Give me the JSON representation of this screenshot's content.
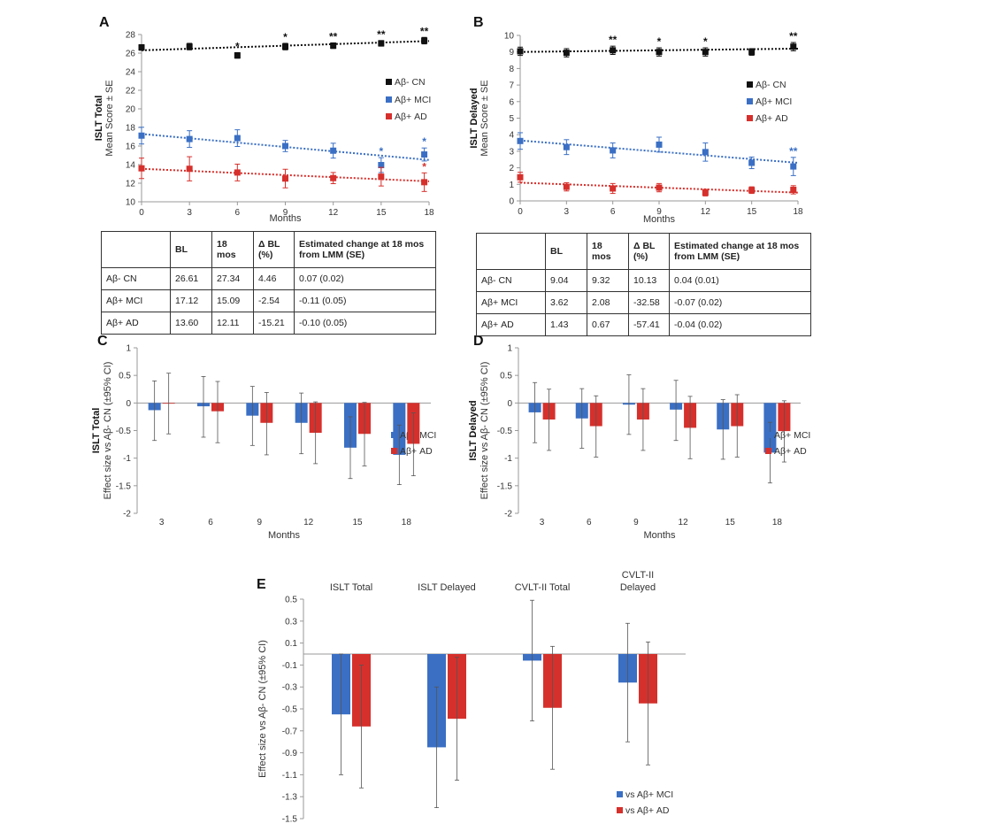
{
  "chart_data": [
    {
      "panel": "A",
      "type": "line",
      "ylabel_title": "ISLT Total",
      "ylabel": "Mean Score ± SE",
      "xlabel": "Months",
      "x": [
        0,
        3,
        6,
        9,
        12,
        15,
        18
      ],
      "xticks": [
        "0",
        "3",
        "6",
        "9",
        "12",
        "15",
        "18"
      ],
      "ylim": [
        10,
        28
      ],
      "yticks": [
        "10",
        "12",
        "14",
        "16",
        "18",
        "20",
        "22",
        "24",
        "26",
        "28"
      ],
      "legend_position": "right",
      "series": [
        {
          "name": "Aβ- CN",
          "color": "#111111",
          "x": [
            0,
            3,
            6,
            9,
            12,
            15,
            17.7
          ],
          "values": [
            26.61,
            26.7,
            25.75,
            26.7,
            26.8,
            27.05,
            27.34
          ],
          "err": [
            0.3,
            0.35,
            0.3,
            0.35,
            0.3,
            0.3,
            0.35
          ],
          "sig": [
            "",
            "",
            "*",
            "*",
            "**",
            "**",
            "**"
          ],
          "trend": [
            26.3,
            27.3
          ]
        },
        {
          "name": "Aβ+ MCI",
          "color": "#3a6fc4",
          "x": [
            0,
            3,
            6,
            9,
            12,
            15,
            17.7
          ],
          "values": [
            17.12,
            16.75,
            16.85,
            16.0,
            15.5,
            13.95,
            15.09
          ],
          "err": [
            0.9,
            0.9,
            0.9,
            0.6,
            0.8,
            0.8,
            0.7
          ],
          "sig": [
            "",
            "",
            "",
            "",
            "",
            "*",
            "*"
          ],
          "trend": [
            17.3,
            14.5
          ]
        },
        {
          "name": "Aβ+ AD",
          "color": "#d6302c",
          "x": [
            0,
            3,
            6,
            9,
            12,
            15,
            17.7
          ],
          "values": [
            13.6,
            13.55,
            13.15,
            12.5,
            12.55,
            12.7,
            12.11
          ],
          "err": [
            1.1,
            1.3,
            0.9,
            1.0,
            0.6,
            1.0,
            1.0
          ],
          "sig": [
            "",
            "",
            "",
            "",
            "",
            "",
            "*"
          ],
          "trend": [
            13.55,
            12.2
          ]
        }
      ],
      "table": {
        "headers": [
          "",
          "BL",
          "18 mos",
          "Δ BL (%)",
          "Estimated change at 18 mos from LMM (SE)"
        ],
        "rows": [
          [
            "Aβ- CN",
            "26.61",
            "27.34",
            "4.46",
            "0.07 (0.02)"
          ],
          [
            "Aβ+ MCI",
            "17.12",
            "15.09",
            "-2.54",
            "-0.11 (0.05)"
          ],
          [
            "Aβ+ AD",
            "13.60",
            "12.11",
            "-15.21",
            "-0.10 (0.05)"
          ]
        ]
      }
    },
    {
      "panel": "B",
      "type": "line",
      "ylabel_title": "ISLT Delayed",
      "ylabel": "Mean Score ± SE",
      "xlabel": "Months",
      "x": [
        0,
        3,
        6,
        9,
        12,
        15,
        18
      ],
      "xticks": [
        "0",
        "3",
        "6",
        "9",
        "12",
        "15",
        "18"
      ],
      "ylim": [
        0,
        10
      ],
      "yticks": [
        "0",
        "1",
        "2",
        "3",
        "4",
        "5",
        "6",
        "7",
        "8",
        "9",
        "10"
      ],
      "legend_position": "right",
      "series": [
        {
          "name": "Aβ- CN",
          "color": "#111111",
          "x": [
            0,
            3,
            6,
            9,
            12,
            15,
            17.7
          ],
          "values": [
            9.04,
            8.95,
            9.1,
            9.0,
            9.0,
            9.0,
            9.32
          ],
          "err": [
            0.25,
            0.25,
            0.25,
            0.25,
            0.25,
            0.2,
            0.25
          ],
          "sig": [
            "",
            "",
            "**",
            "*",
            "*",
            "",
            "**"
          ],
          "trend": [
            9.0,
            9.2
          ]
        },
        {
          "name": "Aβ+ MCI",
          "color": "#3a6fc4",
          "x": [
            0,
            3,
            6,
            9,
            12,
            15,
            17.7
          ],
          "values": [
            3.62,
            3.25,
            3.05,
            3.4,
            2.95,
            2.3,
            2.08
          ],
          "err": [
            0.5,
            0.45,
            0.45,
            0.45,
            0.55,
            0.35,
            0.55
          ],
          "sig": [
            "",
            "",
            "",
            "",
            "",
            "",
            "**"
          ],
          "trend": [
            3.65,
            2.3
          ]
        },
        {
          "name": "Aβ+ AD",
          "color": "#d6302c",
          "x": [
            0,
            3,
            6,
            9,
            12,
            15,
            17.7
          ],
          "values": [
            1.43,
            0.85,
            0.75,
            0.8,
            0.5,
            0.65,
            0.67
          ],
          "err": [
            0.3,
            0.25,
            0.3,
            0.25,
            0.2,
            0.2,
            0.25
          ],
          "sig": [
            "",
            "",
            "",
            "",
            "",
            "",
            ""
          ],
          "trend": [
            1.1,
            0.5
          ]
        }
      ],
      "table": {
        "headers": [
          "",
          "BL",
          "18 mos",
          "Δ BL (%)",
          "Estimated change at 18 mos from LMM (SE)"
        ],
        "rows": [
          [
            "Aβ- CN",
            "9.04",
            "9.32",
            "10.13",
            "0.04 (0.01)"
          ],
          [
            "Aβ+ MCI",
            "3.62",
            "2.08",
            "-32.58",
            "-0.07 (0.02)"
          ],
          [
            "Aβ+ AD",
            "1.43",
            "0.67",
            "-57.41",
            "-0.04 (0.02)"
          ]
        ]
      }
    },
    {
      "panel": "C",
      "type": "bar",
      "ylabel_title": "ISLT Total",
      "ylabel": "Effect size vs Aβ- CN (±95% CI)",
      "xlabel": "Months",
      "categories": [
        "3",
        "6",
        "9",
        "12",
        "15",
        "18"
      ],
      "ylim": [
        -2,
        1
      ],
      "yticks": [
        "-2",
        "-1.5",
        "-1",
        "-0.5",
        "0",
        "0.5",
        "1"
      ],
      "legend_position": "right",
      "series": [
        {
          "name": "Aβ+ MCI",
          "color": "#3a6fc4",
          "values": [
            -0.13,
            -0.06,
            -0.23,
            -0.36,
            -0.81,
            -0.94
          ],
          "lo": [
            -0.68,
            -0.62,
            -0.77,
            -0.92,
            -1.37,
            -1.48
          ],
          "hi": [
            0.4,
            0.48,
            0.3,
            0.18,
            -0.25,
            -0.4
          ]
        },
        {
          "name": "Aβ+ AD",
          "color": "#d6302c",
          "values": [
            -0.01,
            -0.15,
            -0.36,
            -0.54,
            -0.56,
            -0.74
          ],
          "lo": [
            -0.56,
            -0.72,
            -0.94,
            -1.1,
            -1.14,
            -1.32
          ],
          "hi": [
            0.54,
            0.39,
            0.19,
            0.02,
            0.01,
            -0.18
          ]
        }
      ]
    },
    {
      "panel": "D",
      "type": "bar",
      "ylabel_title": "ISLT Delayed",
      "ylabel": "Effect size vs Aβ- CN (±95% CI)",
      "xlabel": "Months",
      "categories": [
        "3",
        "6",
        "9",
        "12",
        "15",
        "18"
      ],
      "ylim": [
        -2,
        1
      ],
      "yticks": [
        "-2",
        "-1.5",
        "-1",
        "-0.5",
        "0",
        "0.5",
        "1"
      ],
      "legend_position": "right",
      "series": [
        {
          "name": "Aβ+ MCI",
          "color": "#3a6fc4",
          "values": [
            -0.17,
            -0.28,
            -0.03,
            -0.12,
            -0.48,
            -0.9
          ],
          "lo": [
            -0.72,
            -0.82,
            -0.57,
            -0.68,
            -1.02,
            -1.45
          ],
          "hi": [
            0.37,
            0.26,
            0.51,
            0.41,
            0.06,
            -0.35
          ]
        },
        {
          "name": "Aβ+ AD",
          "color": "#d6302c",
          "values": [
            -0.3,
            -0.42,
            -0.3,
            -0.45,
            -0.42,
            -0.51
          ],
          "lo": [
            -0.86,
            -0.98,
            -0.86,
            -1.01,
            -0.98,
            -1.07
          ],
          "hi": [
            0.25,
            0.13,
            0.26,
            0.12,
            0.15,
            0.04
          ]
        }
      ]
    },
    {
      "panel": "E",
      "type": "bar",
      "ylabel": "Effect size vs Aβ- CN (±95% CI)",
      "categories": [
        "ISLT Total",
        "ISLT Delayed",
        "CVLT-II Total",
        "CVLT-II Delayed"
      ],
      "category_label_lines": [
        [
          "ISLT Total"
        ],
        [
          "ISLT Delayed"
        ],
        [
          "CVLT-II Total"
        ],
        [
          "CVLT-II",
          "Delayed"
        ]
      ],
      "ylim": [
        -1.5,
        0.5
      ],
      "yticks": [
        "-1.5",
        "-1.3",
        "-1.1",
        "-0.9",
        "-0.7",
        "-0.5",
        "-0.3",
        "-0.1",
        "0.1",
        "0.3",
        "0.5"
      ],
      "legend_position": "bottom-right",
      "series": [
        {
          "name": "vs Aβ+ MCI",
          "color": "#3a6fc4",
          "values": [
            -0.55,
            -0.85,
            -0.06,
            -0.26
          ],
          "lo": [
            -1.1,
            -1.4,
            -0.61,
            -0.8
          ],
          "hi": [
            0.0,
            -0.3,
            0.49,
            0.28
          ]
        },
        {
          "name": "vs Aβ+ AD",
          "color": "#d6302c",
          "values": [
            -0.66,
            -0.59,
            -0.49,
            -0.45
          ],
          "lo": [
            -1.22,
            -1.15,
            -1.05,
            -1.01
          ],
          "hi": [
            -0.1,
            -0.03,
            0.07,
            0.11
          ]
        }
      ]
    }
  ]
}
